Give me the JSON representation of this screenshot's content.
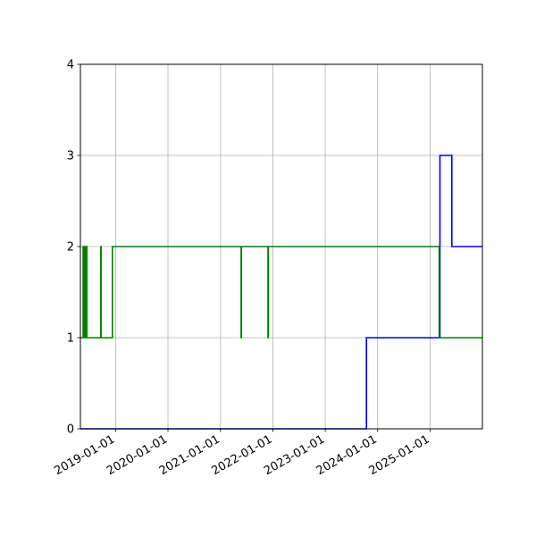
{
  "chart_data": {
    "type": "line",
    "title": "",
    "xlabel": "",
    "ylabel": "",
    "x_axis": {
      "kind": "date",
      "range": [
        "2018-05-01",
        "2025-12-31"
      ],
      "ticks": [
        "2019-01-01",
        "2020-01-01",
        "2021-01-01",
        "2022-01-01",
        "2023-01-01",
        "2024-01-01",
        "2025-01-01"
      ]
    },
    "y_axis": {
      "range": [
        0,
        4
      ],
      "ticks": [
        0,
        1,
        2,
        3,
        4
      ]
    },
    "grid": true,
    "legend": "none",
    "step": "post",
    "series": [
      {
        "color": "#0000ff",
        "x": [
          "2018-05-01",
          "2023-10-15",
          "2025-03-10",
          "2025-06-01",
          "2025-12-31"
        ],
        "y": [
          0,
          1,
          3,
          2,
          2
        ]
      },
      {
        "color": "#008000",
        "x": [
          "2018-05-01",
          "2018-05-20",
          "2018-05-25",
          "2018-06-01",
          "2018-06-05",
          "2018-06-10",
          "2018-06-15",
          "2018-06-22",
          "2018-09-20",
          "2018-09-22",
          "2018-12-10",
          "2021-05-25",
          "2021-05-27",
          "2021-11-28",
          "2021-11-30",
          "2025-03-05",
          "2025-12-31"
        ],
        "y": [
          1,
          2,
          1,
          2,
          1,
          2,
          1,
          1,
          2,
          1,
          2,
          1,
          2,
          1,
          2,
          1,
          1
        ]
      }
    ]
  }
}
